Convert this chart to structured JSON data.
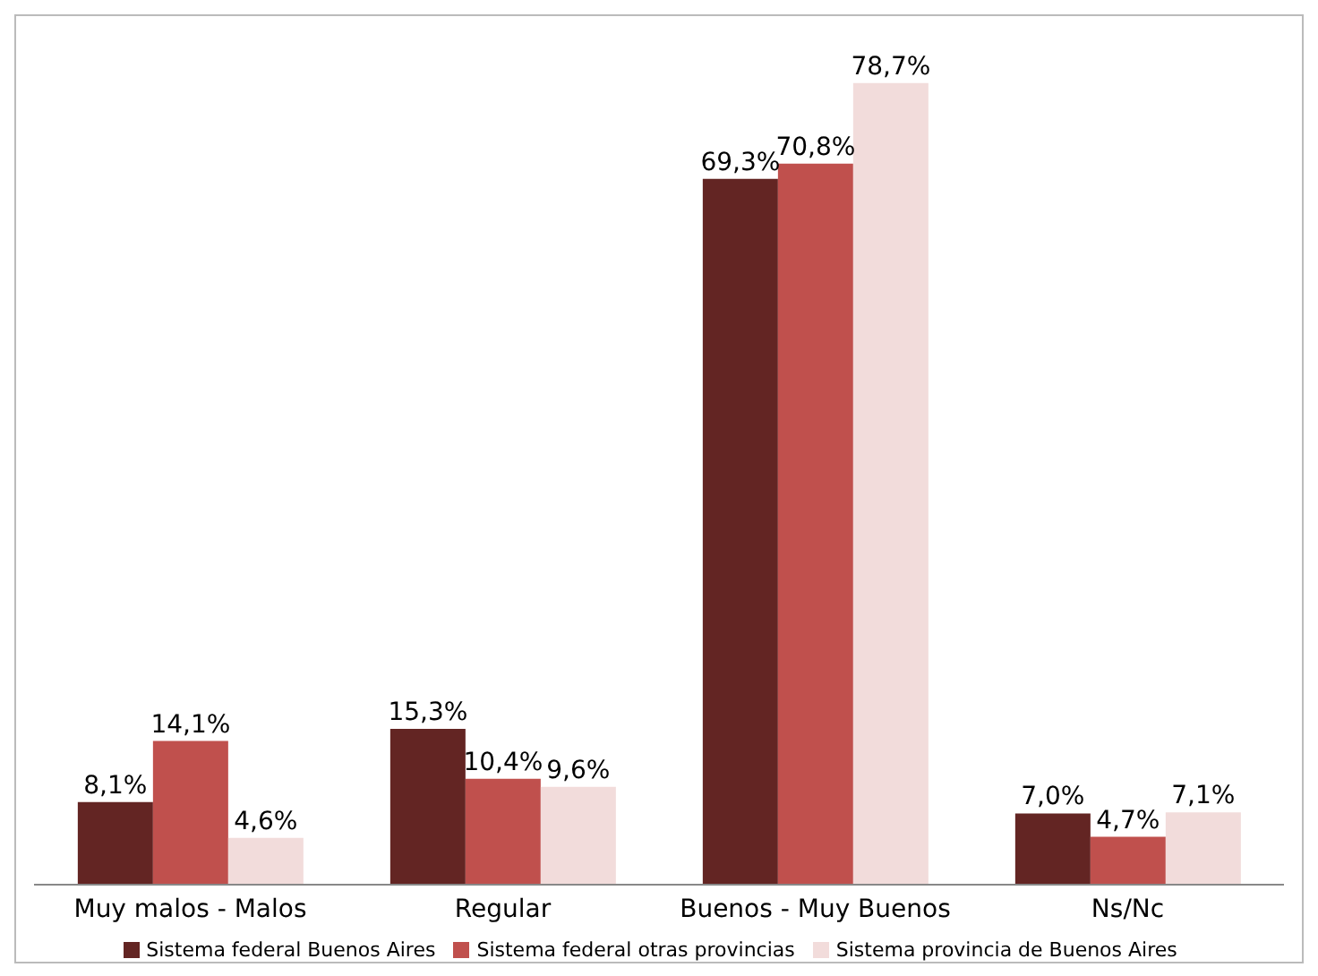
{
  "chart_data": {
    "type": "bar",
    "categories": [
      "Muy malos - Malos",
      "Regular",
      "Buenos - Muy Buenos",
      "Ns/Nc"
    ],
    "series": [
      {
        "name": "Sistema federal  Buenos Aires",
        "color": "#632523",
        "values": [
          8.1,
          15.3,
          69.3,
          7.0
        ],
        "value_labels": [
          "8,1%",
          "15,3%",
          "69,3%",
          "7,0%"
        ]
      },
      {
        "name": "Sistema federal  otras provincias",
        "color": "#c0504d",
        "values": [
          14.1,
          10.4,
          70.8,
          4.7
        ],
        "value_labels": [
          "14,1%",
          "10,4%",
          "70,8%",
          "4,7%"
        ]
      },
      {
        "name": "Sistema provincia de Buenos Aires",
        "color": "#f2dcdb",
        "values": [
          4.6,
          9.6,
          78.7,
          7.1
        ],
        "value_labels": [
          "4,6%",
          "9,6%",
          "78,7%",
          "7,1%"
        ]
      }
    ],
    "grid": false,
    "legend": "bottom"
  }
}
